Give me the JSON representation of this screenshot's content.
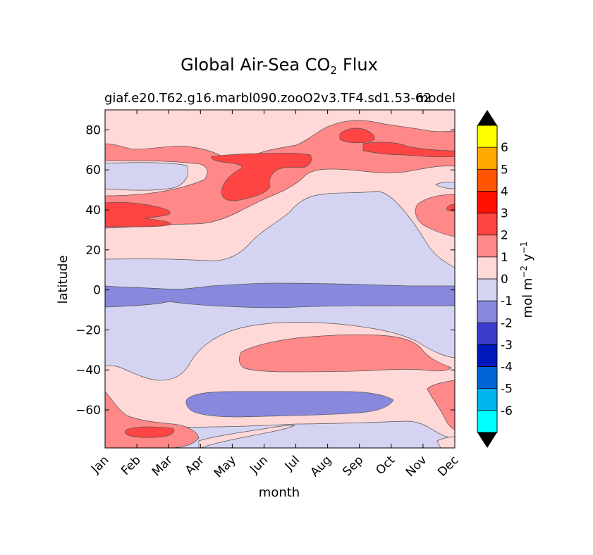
{
  "chart_data": {
    "type": "heatmap",
    "title_main": "Global Air-Sea CO",
    "title_sub": "2",
    "title_end": "Flux",
    "subtitle_left": "giaf.e20.T62.g16.marbl090.zooO2v3.TF4.sd1.53-62",
    "subtitle_right": "model",
    "xlabel": "month",
    "ylabel": "latitude",
    "x_categories": [
      "Jan",
      "Feb",
      "Mar",
      "Apr",
      "May",
      "Jun",
      "Jul",
      "Aug",
      "Sep",
      "Oct",
      "Nov",
      "Dec"
    ],
    "y_ticks": [
      80,
      60,
      40,
      20,
      0,
      -20,
      -40,
      -60
    ],
    "y_tick_labels": [
      "80",
      "60",
      "40",
      "20",
      "0",
      "−20",
      "−40",
      "−60"
    ],
    "ylim": [
      -79,
      90
    ],
    "colorbar": {
      "label_prefix": "mol m",
      "label_exp1": "−2",
      "label_mid": "y",
      "label_exp2": "−1",
      "levels": [
        -7,
        -6,
        -5,
        -4,
        -3,
        -2,
        -1,
        0,
        1,
        2,
        3,
        4,
        5,
        6,
        7
      ],
      "tick_values": [
        -6,
        -5,
        -4,
        -3,
        -2,
        -1,
        0,
        1,
        2,
        3,
        4,
        5,
        6
      ],
      "tick_labels": [
        "-6",
        "-5",
        "-4",
        "-3",
        "-2",
        "-1",
        "0",
        "1",
        "2",
        "3",
        "4",
        "5",
        "6"
      ],
      "colors": [
        "#00ffff",
        "#00b4ee",
        "#0066d8",
        "#0018bb",
        "#3b3bcc",
        "#8888dd",
        "#d4d4f2",
        "#ffd8d8",
        "#ff8888",
        "#ff4444",
        "#ff1100",
        "#ff5500",
        "#ffaa00",
        "#ffff00"
      ],
      "under_color": "#000000",
      "over_color": "#000000"
    },
    "regions": [
      {
        "level": 0,
        "color": "#d4d4f2",
        "lat_min": -79,
        "lat_max": 90,
        "note": "background band 0 to -1"
      },
      {
        "level": 1,
        "color": "#ffd8d8",
        "note": "northern mid/high latitudes 0 to 1"
      },
      {
        "level": 1,
        "color": "#ffd8d8",
        "note": "southern ocean band 0 to 1"
      },
      {
        "level": 2,
        "color": "#ff8888",
        "note": "northern subpolar 1 to 2"
      },
      {
        "level": 2,
        "color": "#ff8888",
        "note": "southern ocean Jul-Nov 1 to 2"
      },
      {
        "level": 2,
        "color": "#ff8888",
        "note": "far south Jan-Mar 1 to 2"
      },
      {
        "level": 3,
        "color": "#ff4444",
        "note": "north Pacific/Atlantic 2 to 3"
      },
      {
        "level": -1,
        "color": "#8888dd",
        "note": "equatorial band -1 to -2"
      },
      {
        "level": -1,
        "color": "#8888dd",
        "note": "southern -60 Apr-Sep -1 to -2"
      }
    ]
  }
}
